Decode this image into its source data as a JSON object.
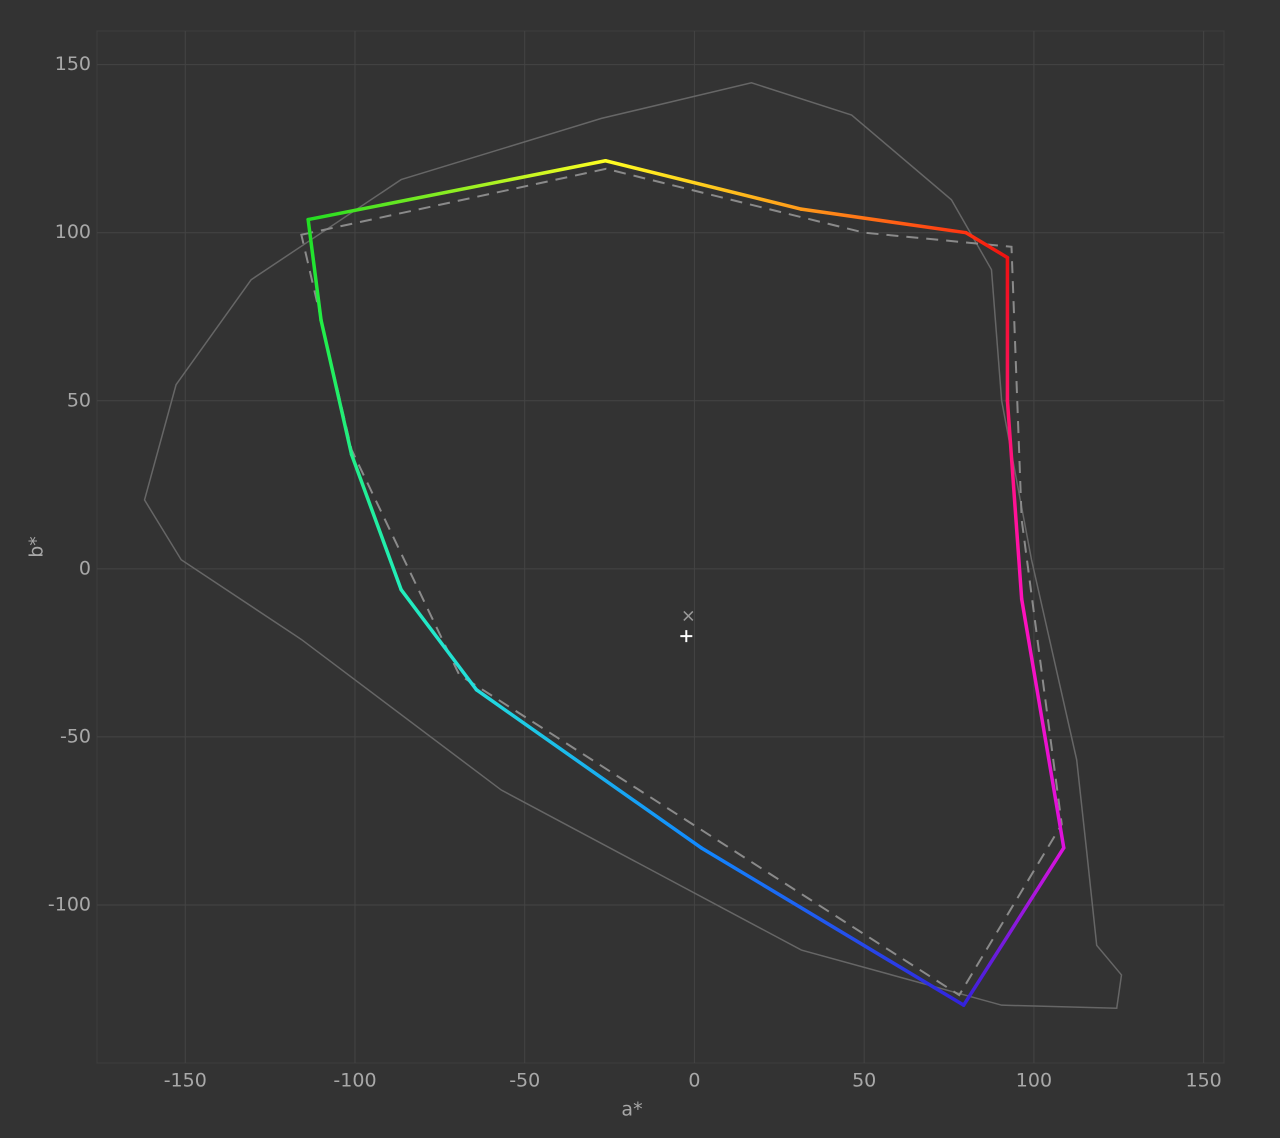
{
  "chart_data": {
    "type": "line",
    "x_label": "a*",
    "y_label": "b*",
    "xlim": [
      -176,
      156
    ],
    "ylim": [
      -147,
      160
    ],
    "xticks": [
      -150,
      -100,
      -50,
      0,
      50,
      100,
      150
    ],
    "yticks": [
      -100,
      -50,
      0,
      50,
      100,
      150
    ],
    "grid": true,
    "series": [
      {
        "style": "thin",
        "closed": true,
        "color": "#666666",
        "x": [
          -162,
          -152.7,
          -130.6,
          -86.4,
          -27.4,
          16.8,
          46.3,
          75.7,
          87.5,
          90.5,
          99.3,
          112.6,
          115.5,
          118.5,
          125.8,
          124.4,
          90.5,
          31.5,
          -56.9,
          -115.8,
          -151.2
        ],
        "values": [
          20.5,
          54.8,
          86,
          115.8,
          134,
          144.6,
          135,
          109.8,
          89,
          50,
          2.7,
          -56.8,
          -83.6,
          -112,
          -120.8,
          -130.7,
          -129.8,
          -113.4,
          -65.8,
          -21,
          2.7
        ]
      },
      {
        "style": "dashed",
        "closed": true,
        "color": "#8a8a8a",
        "x": [
          -115.8,
          -26,
          50,
          93.4,
          96.4,
          108.2,
          78,
          -69.3,
          -101
        ],
        "values": [
          99.4,
          119,
          100,
          95.8,
          14.6,
          -76,
          -126.8,
          -31.5,
          35.4
        ]
      },
      {
        "style": "gradient",
        "closed": true,
        "x": [
          -113.8,
          -26.2,
          31.5,
          80,
          92.2,
          92.2,
          96.4,
          108.8,
          79.3,
          2,
          -64.2,
          -86.4,
          -101,
          -110
        ],
        "values": [
          103.9,
          121.4,
          107,
          100,
          92.6,
          50,
          -9,
          -83,
          -129.8,
          -83,
          -36,
          -6.2,
          34,
          74
        ],
        "colors": [
          "#22dd22",
          "#ffff22",
          "#ff9a1a",
          "#ff3311",
          "#ee1111",
          "#ff1166",
          "#ff11bb",
          "#dd11dd",
          "#3322dd",
          "#1188ff",
          "#22dddd",
          "#22eebb",
          "#22ee88",
          "#22ee44"
        ]
      },
      {
        "style": "cross",
        "color": "#999999",
        "x": [
          -1.8
        ],
        "values": [
          -14
        ]
      },
      {
        "style": "plus",
        "color": "#ffffff",
        "x": [
          -2.4
        ],
        "values": [
          -20
        ]
      }
    ]
  }
}
